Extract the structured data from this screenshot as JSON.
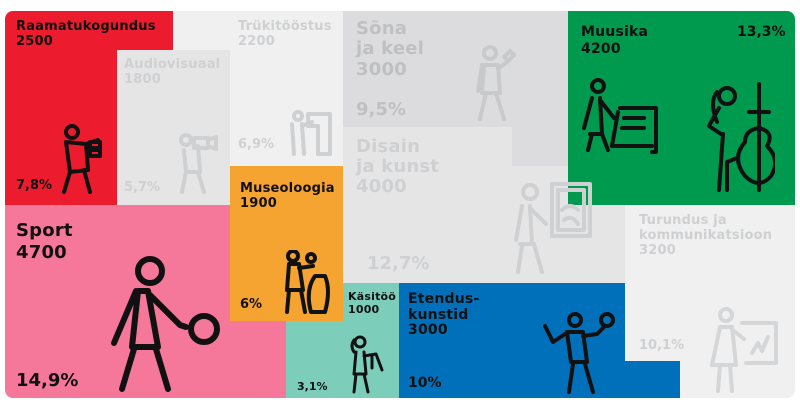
{
  "colors": {
    "raamatukogundus": "#ec1c2e",
    "trukitoostus": "#f0f0f0",
    "audiovisuaal": "#e5e5e6",
    "sona": "#dcdcde",
    "disain": "#e5e5e6",
    "muusika": "#009a4e",
    "turundus": "#f0f0f0",
    "museoloogia": "#f5a331",
    "sport": "#f57799",
    "kasitoo": "#7dcdbb",
    "etendus": "#0070bb"
  },
  "sectors": {
    "raamatukogundus": {
      "name": "Raamatukogundus",
      "value": "2500",
      "percent": "7,8%",
      "icon": "librarian-books-icon"
    },
    "trukitoostus": {
      "name": "Trükitööstus",
      "value": "2200",
      "percent": "6,9%",
      "icon": "printer-operator-icon"
    },
    "audiovisuaal": {
      "name": "Audiovisuaal",
      "value": "1800",
      "percent": "5,7%",
      "icon": "camera-operator-icon"
    },
    "sona": {
      "name": "Sõna\nja keel",
      "value": "3000",
      "percent": "9,5%",
      "icon": "speaker-microphone-icon"
    },
    "disain": {
      "name": "Disain\nja kunst",
      "value": "4000",
      "percent": "12,7%",
      "icon": "painter-canvas-icon"
    },
    "muusika": {
      "name": "Muusika",
      "value": "4200",
      "percent": "13,3%",
      "icons": [
        "keyboard-player-icon",
        "cellist-icon"
      ]
    },
    "turundus": {
      "name": "Turundus ja\nkommunikatsioon",
      "value": "3200",
      "percent": "10,1%",
      "icon": "presenter-chart-icon"
    },
    "museoloogia": {
      "name": "Museoloogia",
      "value": "1900",
      "percent": "6%",
      "icon": "museum-vase-icon"
    },
    "sport": {
      "name": "Sport",
      "value": "4700",
      "percent": "14,9%",
      "icon": "ball-player-icon"
    },
    "kasitoo": {
      "name": "Käsitöö",
      "value": "1000",
      "percent": "3,1%",
      "icon": "craftsperson-icon"
    },
    "etendus": {
      "name": "Etendus-\nkunstid",
      "value": "3000",
      "percent": "10%",
      "icon": "actor-skull-icon"
    }
  }
}
